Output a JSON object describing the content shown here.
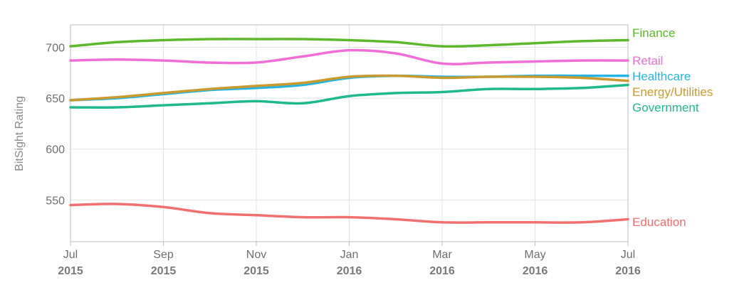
{
  "chart_data": {
    "type": "line",
    "title": "",
    "xlabel": "",
    "ylabel": "BitSight Rating",
    "ylim": [
      509,
      722
    ],
    "xlim": [
      "2015-07",
      "2016-07"
    ],
    "yticks": [
      550,
      600,
      650,
      700
    ],
    "xticks": [
      {
        "month": "Jul",
        "year": "2015",
        "x": "2015-07"
      },
      {
        "month": "Sep",
        "year": "2015",
        "x": "2015-09"
      },
      {
        "month": "Nov",
        "year": "2015",
        "x": "2015-11"
      },
      {
        "month": "Jan",
        "year": "2016",
        "x": "2016-01"
      },
      {
        "month": "Mar",
        "year": "2016",
        "x": "2016-03"
      },
      {
        "month": "May",
        "year": "2016",
        "x": "2016-05"
      },
      {
        "month": "Jul",
        "year": "2016",
        "x": "2016-07"
      }
    ],
    "grid": true,
    "legend": "right, labels at line ends",
    "x": [
      "2015-07",
      "2015-08",
      "2015-09",
      "2015-10",
      "2015-11",
      "2015-12",
      "2016-01",
      "2016-02",
      "2016-03",
      "2016-04",
      "2016-05",
      "2016-06",
      "2016-07"
    ],
    "series": [
      {
        "name": "Finance",
        "color": "#5db82d",
        "values": [
          701,
          705,
          707,
          708,
          708,
          708,
          707,
          705,
          701,
          702,
          704,
          706,
          707
        ]
      },
      {
        "name": "Retail",
        "color": "#ef6fd7",
        "values": [
          687,
          688,
          687,
          685,
          685,
          691,
          697,
          694,
          684,
          685,
          686,
          687,
          687
        ]
      },
      {
        "name": "Healthcare",
        "color": "#26b5e2",
        "values": [
          648,
          650,
          654,
          658,
          660,
          663,
          670,
          672,
          671,
          671,
          672,
          672,
          672
        ]
      },
      {
        "name": "Energy/Utilities",
        "color": "#c99a2e",
        "values": [
          648,
          651,
          655,
          659,
          662,
          665,
          671,
          672,
          670,
          671,
          671,
          670,
          667
        ]
      },
      {
        "name": "Government",
        "color": "#1fb98b",
        "values": [
          641,
          641,
          643,
          645,
          647,
          645,
          652,
          655,
          656,
          659,
          659,
          660,
          663
        ]
      },
      {
        "name": "Education",
        "color": "#f07070",
        "values": [
          545,
          546,
          543,
          537,
          535,
          533,
          533,
          531,
          528,
          528,
          528,
          528,
          531
        ]
      }
    ]
  }
}
